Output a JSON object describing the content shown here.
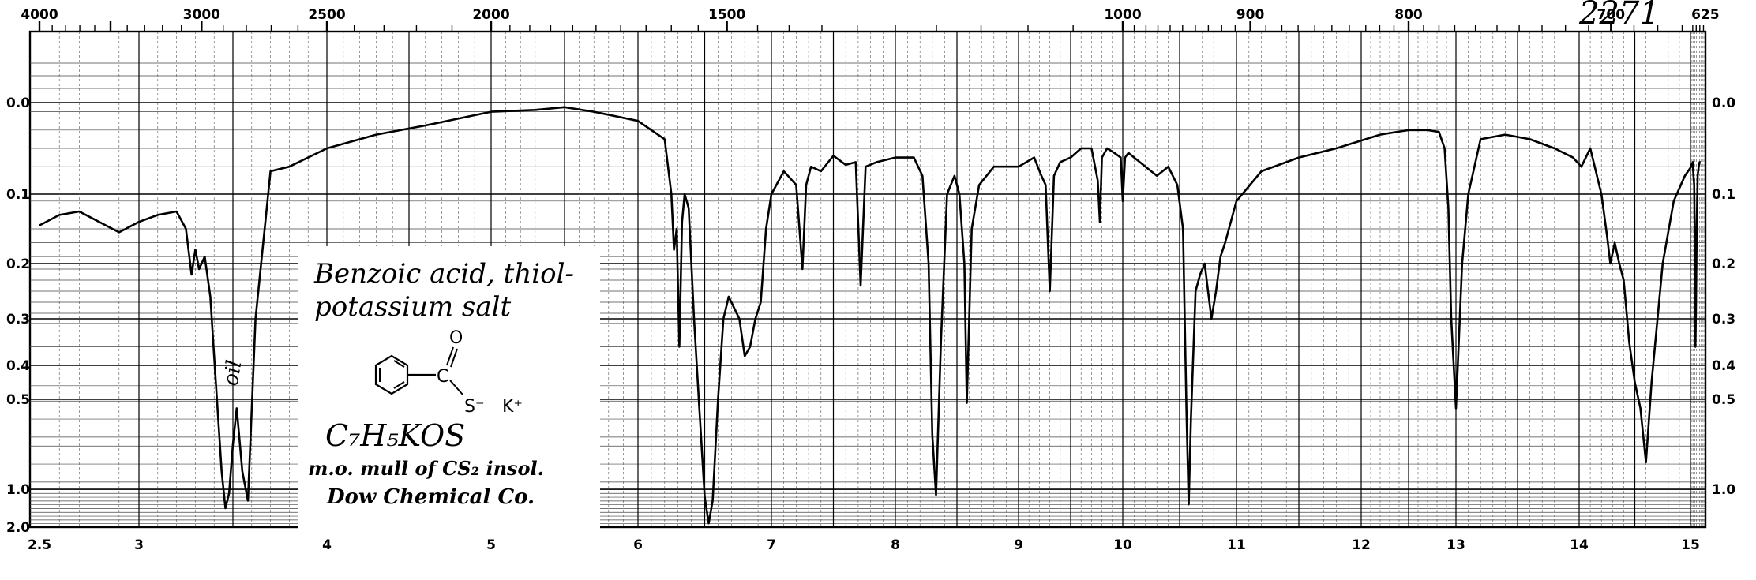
{
  "catalog_number": "2271",
  "annotation": "oil",
  "compound": {
    "name_line1": "Benzoic acid, thiol-",
    "name_line2": "potassium salt",
    "structure_O": "O",
    "structure_C": "C",
    "structure_S": "S⁻",
    "structure_K": "K⁺",
    "formula": "C₇H₅KOS",
    "sample": "m.o. mull of CS₂ insol.",
    "source": "Dow Chemical Co."
  },
  "chart_data": {
    "type": "line",
    "title": "",
    "xlabel": "",
    "ylabel": "",
    "x_unit": "micron",
    "xlim": [
      2.5,
      15.9
    ],
    "y_scale": "absorbance",
    "top_axis_wavenumber_labels": [
      "4000",
      "3000",
      "2500",
      "2000",
      "1500",
      "1000",
      "900",
      "800",
      "700",
      "625"
    ],
    "bottom_axis_labels": [
      "2.5",
      "3",
      "4",
      "5",
      "6",
      "7",
      "8",
      "9",
      "10",
      "11",
      "12",
      "13",
      "14",
      "15"
    ],
    "left_axis_labels": [
      "0.0",
      "0.1",
      "0.2",
      "0.3",
      "0.4",
      "0.5",
      "1.0",
      "2.0"
    ],
    "right_axis_labels": [
      "0.0",
      "0.1",
      "0.2",
      "0.3",
      "0.4",
      "0.5",
      "1.0"
    ],
    "grid": true,
    "series": [
      {
        "x": [
          2.5,
          2.6,
          2.7,
          2.8,
          2.9,
          3.0,
          3.1,
          3.2,
          3.25,
          3.28,
          3.3,
          3.32,
          3.35,
          3.38,
          3.4,
          3.44,
          3.46,
          3.48,
          3.5,
          3.52,
          3.55,
          3.58,
          3.62,
          3.7,
          3.8,
          4.0,
          4.3,
          4.6,
          5.0,
          5.3,
          5.5,
          5.7,
          5.85,
          6.0,
          6.1,
          6.2,
          6.25,
          6.27,
          6.29,
          6.31,
          6.33,
          6.35,
          6.38,
          6.42,
          6.46,
          6.5,
          6.53,
          6.56,
          6.6,
          6.64,
          6.68,
          6.72,
          6.76,
          6.8,
          6.84,
          6.88,
          6.92,
          6.96,
          7.0,
          7.1,
          7.2,
          7.25,
          7.28,
          7.32,
          7.4,
          7.5,
          7.6,
          7.68,
          7.72,
          7.76,
          7.85,
          8.0,
          8.15,
          8.22,
          8.27,
          8.3,
          8.33,
          8.37,
          8.42,
          8.48,
          8.52,
          8.56,
          8.58,
          8.62,
          8.68,
          8.8,
          9.0,
          9.15,
          9.22,
          9.26,
          9.3,
          9.34,
          9.4,
          9.5,
          9.6,
          9.7,
          9.76,
          9.78,
          9.8,
          9.85,
          9.92,
          9.98,
          10.0,
          10.02,
          10.05,
          10.1,
          10.2,
          10.3,
          10.4,
          10.48,
          10.53,
          10.56,
          10.58,
          10.6,
          10.64,
          10.68,
          10.72,
          10.78,
          10.82,
          10.86,
          10.9,
          11.0,
          11.2,
          11.5,
          11.8,
          12.2,
          12.5,
          12.7,
          12.82,
          12.88,
          12.92,
          12.95,
          13.0,
          13.05,
          13.1,
          13.2,
          13.4,
          13.6,
          13.8,
          13.95,
          14.02,
          14.1,
          14.2,
          14.25,
          14.28,
          14.32,
          14.36,
          14.4,
          14.45,
          14.5,
          14.55,
          14.6,
          14.65,
          14.75,
          14.85,
          14.95,
          15.05,
          15.15,
          15.2,
          15.25,
          15.28,
          15.3,
          15.33,
          15.36,
          15.42,
          15.48,
          15.55,
          15.62,
          15.68
        ],
        "y": [
          0.145,
          0.13,
          0.125,
          0.14,
          0.155,
          0.14,
          0.13,
          0.125,
          0.15,
          0.22,
          0.18,
          0.21,
          0.19,
          0.26,
          0.38,
          0.9,
          1.5,
          1.1,
          0.75,
          0.55,
          0.9,
          1.3,
          0.3,
          0.075,
          0.07,
          0.05,
          0.035,
          0.025,
          0.01,
          0.008,
          0.005,
          0.01,
          0.015,
          0.02,
          0.03,
          0.04,
          0.1,
          0.18,
          0.15,
          0.36,
          0.14,
          0.1,
          0.12,
          0.3,
          0.55,
          1.2,
          1.9,
          1.3,
          0.5,
          0.3,
          0.26,
          0.28,
          0.3,
          0.38,
          0.36,
          0.3,
          0.27,
          0.15,
          0.1,
          0.075,
          0.09,
          0.21,
          0.09,
          0.07,
          0.075,
          0.058,
          0.068,
          0.065,
          0.24,
          0.07,
          0.065,
          0.06,
          0.06,
          0.08,
          0.2,
          0.7,
          1.15,
          0.35,
          0.1,
          0.08,
          0.1,
          0.2,
          0.52,
          0.15,
          0.09,
          0.07,
          0.07,
          0.06,
          0.08,
          0.09,
          0.25,
          0.08,
          0.065,
          0.06,
          0.05,
          0.05,
          0.085,
          0.14,
          0.06,
          0.05,
          0.055,
          0.06,
          0.11,
          0.06,
          0.055,
          0.06,
          0.07,
          0.08,
          0.07,
          0.09,
          0.15,
          0.55,
          1.4,
          0.6,
          0.25,
          0.22,
          0.2,
          0.3,
          0.25,
          0.19,
          0.17,
          0.11,
          0.075,
          0.06,
          0.05,
          0.035,
          0.03,
          0.03,
          0.032,
          0.05,
          0.12,
          0.3,
          0.55,
          0.2,
          0.1,
          0.04,
          0.035,
          0.04,
          0.05,
          0.06,
          0.07,
          0.05,
          0.1,
          0.16,
          0.2,
          0.17,
          0.2,
          0.23,
          0.35,
          0.45,
          0.55,
          0.85,
          0.45,
          0.2,
          0.11,
          0.08,
          0.07,
          0.065,
          0.08,
          0.09,
          0.15,
          0.3,
          0.36,
          0.3,
          0.15,
          0.08,
          0.07,
          0.065,
          0.065
        ]
      }
    ]
  }
}
